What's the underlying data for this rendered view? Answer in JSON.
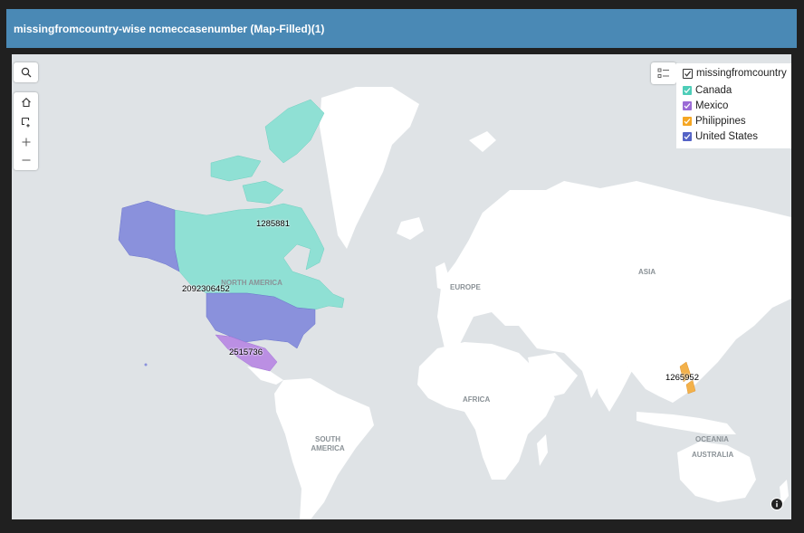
{
  "header": {
    "title": "missingfromcountry-wise ncmeccasenumber (Map-Filled)(1)"
  },
  "toolbar": {
    "search_icon": "search-icon",
    "home_icon": "home-icon",
    "select_icon": "box-select-icon",
    "zoom_in_icon": "plus-icon",
    "zoom_out_icon": "minus-icon"
  },
  "legend": {
    "title": "missingfromcountry",
    "items": [
      {
        "label": "Canada",
        "color": "#4ecdb8"
      },
      {
        "label": "Mexico",
        "color": "#9b6bd6"
      },
      {
        "label": "Philippines",
        "color": "#f5a623"
      },
      {
        "label": "United States",
        "color": "#5463c6"
      }
    ]
  },
  "map": {
    "values": [
      {
        "country": "Canada",
        "value": "1285881"
      },
      {
        "country": "United States",
        "value": "2092306452"
      },
      {
        "country": "Mexico",
        "value": "2515736"
      },
      {
        "country": "Philippines",
        "value": "1265952"
      }
    ],
    "regions": {
      "north_america": "NORTH AMERICA",
      "europe": "EUROPE",
      "asia": "ASIA",
      "africa": "AFRICA",
      "south_america": "SOUTH AMERICA",
      "oceania": "OCEANIA",
      "australia": "AUSTRALIA"
    },
    "colors": {
      "water": "#dfe3e6",
      "land": "#ffffff",
      "canada": "#8fe0d4",
      "usa": "#8a91dc",
      "mexico": "#bb8fe3",
      "philippines": "#f3b14a"
    }
  }
}
